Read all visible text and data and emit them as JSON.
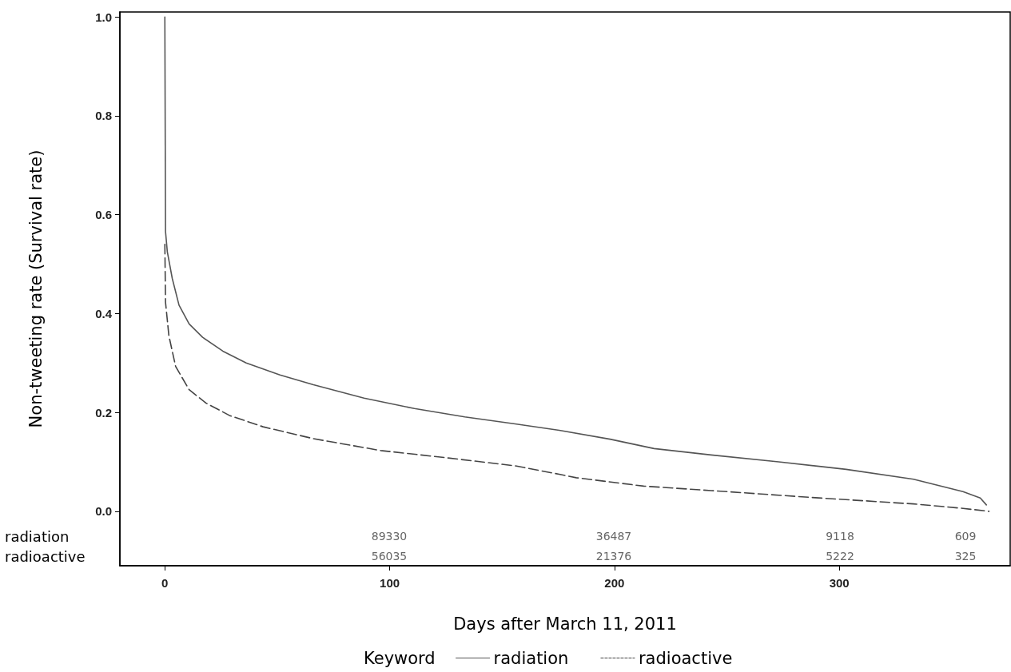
{
  "chart_data": {
    "type": "line",
    "xlabel": "Days after March 11, 2011",
    "ylabel": "Non-tweeting rate (Survival rate)",
    "legend_title": "Keyword",
    "legend": "bottom",
    "xlim": [
      -20,
      376
    ],
    "xticks": [
      0,
      100,
      200,
      300
    ],
    "ylim": [
      -0.11,
      1.01
    ],
    "yticks": [
      {
        "value": 0,
        "label": "0.0"
      },
      0.2,
      0.4,
      0.6,
      0.8,
      {
        "value": 1,
        "label": "1.0"
      }
    ],
    "series": [
      {
        "name": "radiation",
        "color": "#555555",
        "line_style": "solid",
        "x": [
          0,
          0.3,
          1.1,
          3.3,
          6.3,
          10.8,
          16.8,
          25.8,
          36.2,
          51.2,
          66.1,
          88.6,
          111,
          133.4,
          155.8,
          175.4,
          198,
          217.6,
          243,
          273,
          303,
          333,
          355,
          362.7,
          365.4
        ],
        "values": [
          1.0,
          0.566,
          0.525,
          0.471,
          0.417,
          0.379,
          0.352,
          0.324,
          0.3,
          0.276,
          0.256,
          0.229,
          0.208,
          0.191,
          0.177,
          0.164,
          0.146,
          0.127,
          0.114,
          0.1,
          0.085,
          0.065,
          0.04,
          0.027,
          0.013
        ]
      },
      {
        "name": "radioactive",
        "color": "#444444",
        "line_style": "dashed",
        "x": [
          0,
          0.3,
          1.8,
          4.8,
          10.8,
          18.3,
          28.7,
          43.7,
          66.1,
          96,
          126,
          155.8,
          175.4,
          183,
          213,
          243,
          288,
          333,
          355,
          366.6
        ],
        "values": [
          0.54,
          0.423,
          0.355,
          0.293,
          0.246,
          0.219,
          0.194,
          0.171,
          0.147,
          0.123,
          0.108,
          0.092,
          0.075,
          0.068,
          0.051,
          0.042,
          0.028,
          0.015,
          0.006,
          0.0
        ]
      }
    ],
    "annotations": [
      "radiation",
      "radioactive",
      "89330",
      "36487",
      "9118",
      "609",
      "56035",
      "21376",
      "5222",
      "325"
    ]
  }
}
